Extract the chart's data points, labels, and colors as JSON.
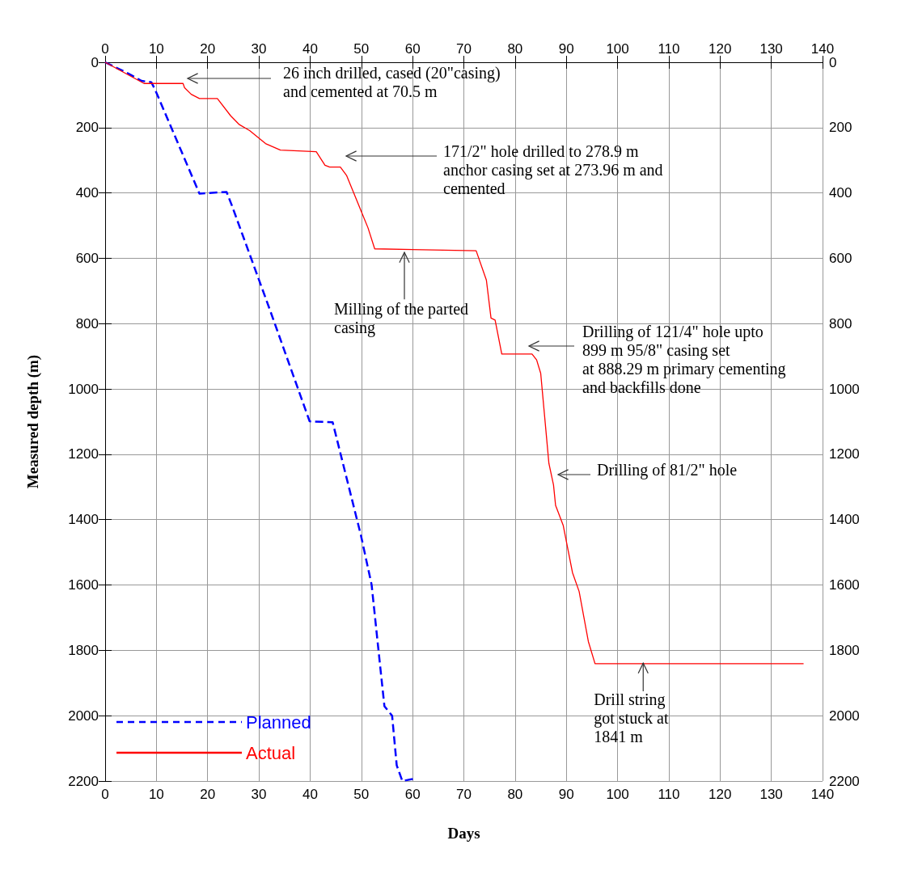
{
  "chart_data": {
    "type": "line",
    "xlabel": "Days",
    "ylabel": "Measured depth (m)",
    "xlim": [
      0,
      140
    ],
    "xticks": [
      0,
      10,
      20,
      30,
      40,
      50,
      60,
      70,
      80,
      90,
      100,
      110,
      120,
      130,
      140
    ],
    "x2lim": [
      0,
      140
    ],
    "x2ticks": [
      0,
      10,
      20,
      30,
      40,
      50,
      60,
      70,
      80,
      90,
      100,
      110,
      120,
      130,
      140
    ],
    "ylim": [
      2200,
      0
    ],
    "yticks": [
      0,
      200,
      400,
      600,
      800,
      1000,
      1200,
      1400,
      1600,
      1800,
      2000,
      2200
    ],
    "y2lim": [
      2200,
      0
    ],
    "y2ticks": [
      0,
      200,
      400,
      600,
      800,
      1000,
      1200,
      1400,
      1600,
      1800,
      2000,
      2200
    ],
    "grid": true,
    "legend": "bottom left",
    "series": [
      {
        "name": "Planned",
        "color": "#0000ff",
        "line_style": "dashed",
        "x": [
          0,
          4.7,
          7.1,
          9.0,
          9.7,
          18.4,
          23.7,
          24.7,
          32.2,
          39.9,
          44.4,
          49.9,
          52.0,
          53.6,
          54.5,
          56.0,
          56.9,
          58.0,
          60.6
        ],
        "values": [
          0,
          36,
          57,
          61,
          82,
          402,
          397,
          437,
          760,
          1099,
          1102,
          1447,
          1599,
          1838,
          1971,
          2000,
          2152,
          2200,
          2192
        ]
      },
      {
        "name": "Actual",
        "color": "#ff0000",
        "line_style": "solid",
        "x": [
          0,
          7.6,
          15.2,
          15.5,
          16.8,
          18.4,
          21.9,
          24.5,
          26.2,
          28.2,
          31.3,
          34.2,
          41.2,
          42.9,
          43.8,
          45.9,
          47.1,
          50.0,
          51.3,
          52.6,
          72.4,
          74.4,
          75.3,
          76.1,
          77.4,
          83.3,
          84.2,
          85.0,
          86.6,
          87.5,
          87.9,
          89.4,
          91.2,
          92.5,
          94.3,
          95.6,
          136.3
        ],
        "values": [
          0,
          65,
          65,
          78,
          98,
          111,
          111,
          164,
          191,
          209,
          249,
          269,
          274,
          315,
          321,
          321,
          346,
          457,
          507,
          571,
          577,
          667,
          783,
          789,
          893,
          893,
          911,
          952,
          1228,
          1294,
          1356,
          1418,
          1562,
          1620,
          1773,
          1841,
          1841
        ]
      }
    ],
    "annotations": [
      "26 inch drilled, cased (20\"casing)\nand cemented at 70.5 m",
      "171/2\" hole drilled to 278.9 m\nanchor casing set at 273.96 m and\ncemented",
      {
        "text": "Milling of the parted\ncasing",
        "x": 58.4,
        "y": 582
      },
      "Drilling of 121/4\" hole upto\n899 m 95/8\" casing set\nat 888.29 m primary cementing\nand backfills done",
      "Drilling of 81/2\" hole",
      {
        "text": "Drill string\ngot stuck at\n1841 m",
        "x": 105.0,
        "y": 1839
      }
    ]
  }
}
